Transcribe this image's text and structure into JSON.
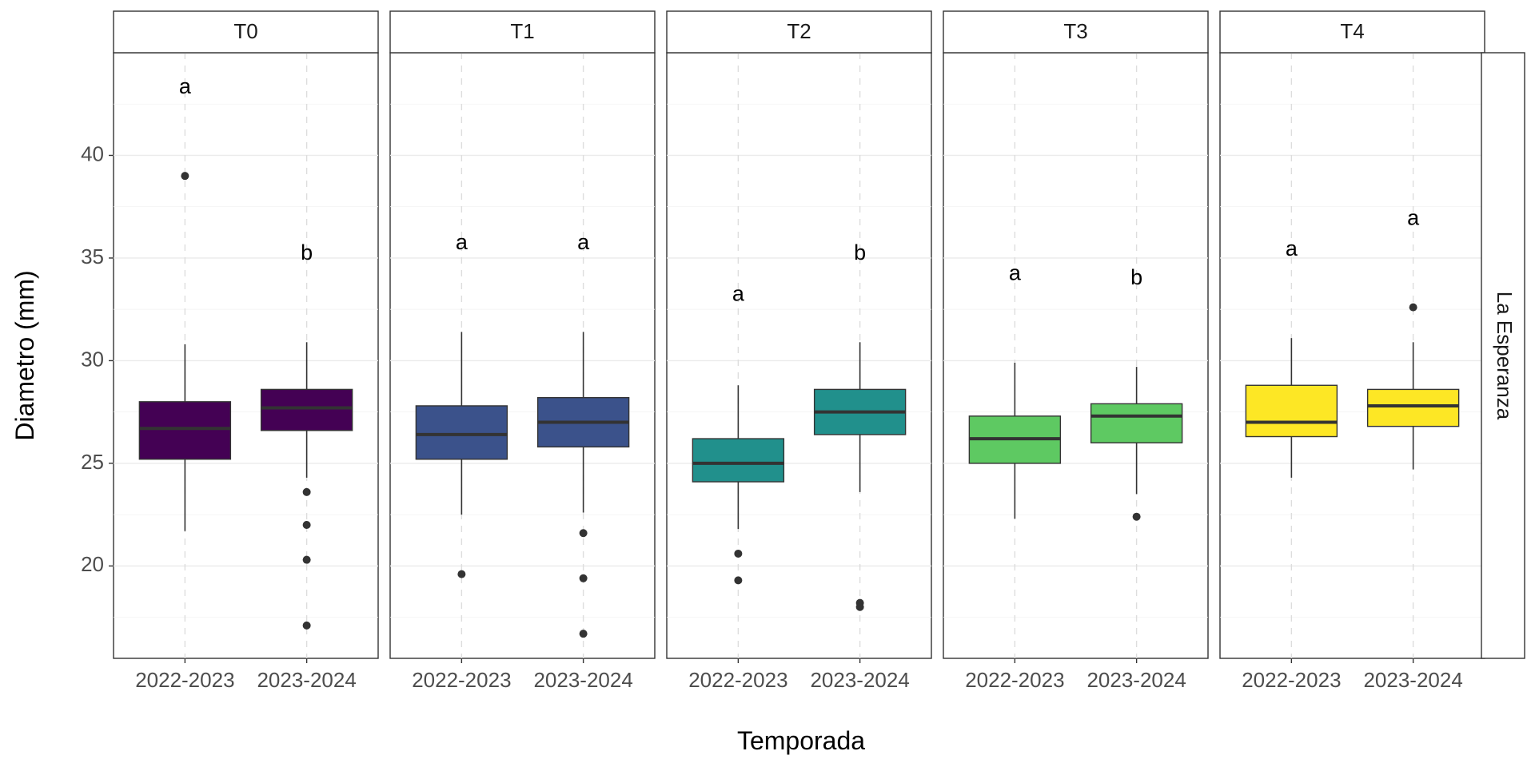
{
  "chart_data": {
    "type": "boxplot",
    "xlabel": "Temporada",
    "ylabel": "Diametro (mm)",
    "row_strip": "La Esperanza",
    "categories": [
      "2022-2023",
      "2023-2024"
    ],
    "ylim": [
      15.5,
      45
    ],
    "y_ticks": [
      20,
      25,
      30,
      35,
      40
    ],
    "grid": true,
    "panels": [
      {
        "name": "T0",
        "color": "#440154",
        "boxes": [
          {
            "category": "2022-2023",
            "low": 21.7,
            "q1": 25.2,
            "median": 26.7,
            "q3": 28.0,
            "high": 30.8,
            "outliers": [
              39.0
            ],
            "letter": "a",
            "letter_y": 43.3
          },
          {
            "category": "2023-2024",
            "low": 24.3,
            "q1": 26.6,
            "median": 27.7,
            "q3": 28.6,
            "high": 30.9,
            "outliers": [
              23.6,
              22.0,
              20.3,
              17.1
            ],
            "letter": "b",
            "letter_y": 35.2
          }
        ]
      },
      {
        "name": "T1",
        "color": "#3b528b",
        "boxes": [
          {
            "category": "2022-2023",
            "low": 22.5,
            "q1": 25.2,
            "median": 26.4,
            "q3": 27.8,
            "high": 31.4,
            "outliers": [
              19.6
            ],
            "letter": "a",
            "letter_y": 35.7
          },
          {
            "category": "2023-2024",
            "low": 22.6,
            "q1": 25.8,
            "median": 27.0,
            "q3": 28.2,
            "high": 31.4,
            "outliers": [
              21.6,
              19.4,
              16.7
            ],
            "letter": "a",
            "letter_y": 35.7
          }
        ]
      },
      {
        "name": "T2",
        "color": "#21908c",
        "boxes": [
          {
            "category": "2022-2023",
            "low": 21.8,
            "q1": 24.1,
            "median": 25.0,
            "q3": 26.2,
            "high": 28.8,
            "outliers": [
              20.6,
              19.3
            ],
            "letter": "a",
            "letter_y": 33.2
          },
          {
            "category": "2023-2024",
            "low": 23.6,
            "q1": 26.4,
            "median": 27.5,
            "q3": 28.6,
            "high": 30.9,
            "outliers": [
              18.2,
              18.0
            ],
            "letter": "b",
            "letter_y": 35.2
          }
        ]
      },
      {
        "name": "T3",
        "color": "#5ec962",
        "boxes": [
          {
            "category": "2022-2023",
            "low": 22.3,
            "q1": 25.0,
            "median": 26.2,
            "q3": 27.3,
            "high": 29.9,
            "outliers": [],
            "letter": "a",
            "letter_y": 34.2
          },
          {
            "category": "2023-2024",
            "low": 23.5,
            "q1": 26.0,
            "median": 27.3,
            "q3": 27.9,
            "high": 29.7,
            "outliers": [
              22.4
            ],
            "letter": "b",
            "letter_y": 34.0
          }
        ]
      },
      {
        "name": "T4",
        "color": "#fde725",
        "boxes": [
          {
            "category": "2022-2023",
            "low": 24.3,
            "q1": 26.3,
            "median": 27.0,
            "q3": 28.8,
            "high": 31.1,
            "outliers": [],
            "letter": "a",
            "letter_y": 35.4
          },
          {
            "category": "2023-2024",
            "low": 24.7,
            "q1": 26.8,
            "median": 27.8,
            "q3": 28.6,
            "high": 30.9,
            "outliers": [
              32.6
            ],
            "letter": "a",
            "letter_y": 36.9
          }
        ]
      }
    ]
  }
}
